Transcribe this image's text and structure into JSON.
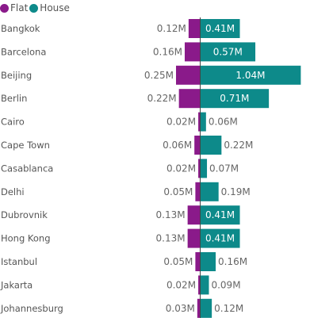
{
  "chart_data": {
    "type": "bar",
    "orientation": "horizontal-diverging",
    "legend_position": "top-left",
    "categories": [
      "Bangkok",
      "Barcelona",
      "Beijing",
      "Berlin",
      "Cairo",
      "Cape Town",
      "Casablanca",
      "Delhi",
      "Dubrovnik",
      "Hong Kong",
      "Istanbul",
      "Jakarta",
      "Johannesburg"
    ],
    "series": [
      {
        "name": "Flat",
        "color": "#8a1a8a",
        "values": [
          0.12,
          0.16,
          0.25,
          0.22,
          0.02,
          0.06,
          0.02,
          0.05,
          0.13,
          0.13,
          0.05,
          0.02,
          0.03
        ],
        "labels": [
          "0.12M",
          "0.16M",
          "0.25M",
          "0.22M",
          "0.02M",
          "0.06M",
          "0.02M",
          "0.05M",
          "0.13M",
          "0.13M",
          "0.05M",
          "0.02M",
          "0.03M"
        ]
      },
      {
        "name": "House",
        "color": "#0d8a8a",
        "values": [
          0.41,
          0.57,
          1.04,
          0.71,
          0.06,
          0.22,
          0.07,
          0.19,
          0.41,
          0.41,
          0.16,
          0.09,
          0.12
        ],
        "labels": [
          "0.41M",
          "0.57M",
          "1.04M",
          "0.71M",
          "0.06M",
          "0.22M",
          "0.07M",
          "0.19M",
          "0.41M",
          "0.41M",
          "0.16M",
          "0.09M",
          "0.12M"
        ]
      }
    ]
  }
}
